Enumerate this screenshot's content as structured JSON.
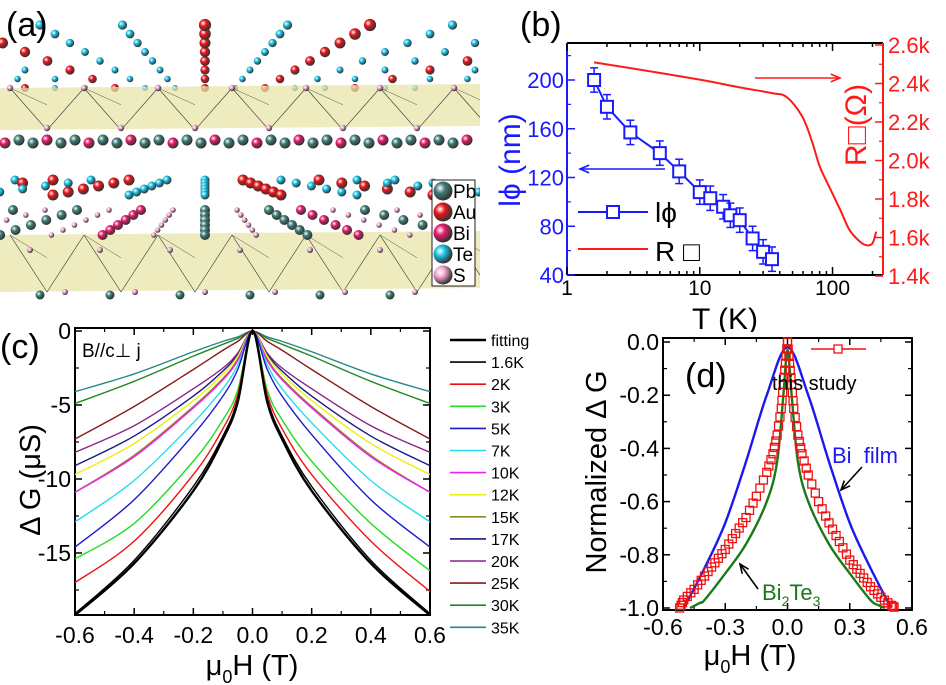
{
  "panel_a": {
    "label": "(a)",
    "legend": [
      {
        "name": "Pb",
        "color": "#3f7d78"
      },
      {
        "name": "Au",
        "color": "#e8141a"
      },
      {
        "name": "Bi",
        "color": "#e6196a"
      },
      {
        "name": "Te",
        "color": "#17c3e6"
      },
      {
        "name": "S",
        "color": "#f4a6cf"
      }
    ],
    "layer_color": "#e8e4a8"
  },
  "chart_data": [
    {
      "id": "b",
      "label": "(b)",
      "type": "line",
      "xlabel": "T (K)",
      "xscale": "log",
      "xlim": [
        1,
        240
      ],
      "xticks": [
        "1",
        "10",
        "100"
      ],
      "xtick_values": [
        1,
        10,
        100
      ],
      "ylabel_left": "lϕ (nm)",
      "ylim_left": [
        40,
        230
      ],
      "yticks_left": [
        40,
        80,
        120,
        160,
        200
      ],
      "ylabel_right": "R□(Ω)",
      "ylim_right": [
        1.4,
        2.6
      ],
      "yticks_right": [
        "1.4k",
        "1.6k",
        "1.8k",
        "2.0k",
        "2.2k",
        "2.4k",
        "2.6k"
      ],
      "ytick_right_values": [
        1.4,
        1.6,
        1.8,
        2.0,
        2.2,
        2.4,
        2.6
      ],
      "left_color": "#1a1aff",
      "right_color": "#ff1a1a",
      "legend_placement": "lower-left",
      "series": [
        {
          "name": "lϕ",
          "axis": "left",
          "marker": "open-square",
          "color": "#1a1aff",
          "x": [
            1.6,
            2,
            3,
            5,
            7,
            10,
            12,
            15,
            17,
            20,
            25,
            30,
            35
          ],
          "y": [
            200,
            178,
            157,
            140,
            125,
            108,
            103,
            96,
            89,
            85,
            70,
            59,
            53
          ],
          "err": [
            10,
            10,
            10,
            10,
            10,
            10,
            10,
            10,
            10,
            10,
            10,
            10,
            10
          ]
        },
        {
          "name": "R □",
          "axis": "right",
          "marker": "none",
          "color": "#ff1a1a",
          "x": [
            1.6,
            3,
            10,
            20,
            35,
            45,
            59,
            70,
            80,
            95,
            115,
            134,
            160,
            180,
            200,
            213
          ],
          "y": [
            2.51,
            2.48,
            2.42,
            2.38,
            2.35,
            2.33,
            2.23,
            2.1,
            1.97,
            1.86,
            1.74,
            1.64,
            1.58,
            1.56,
            1.57,
            1.63
          ]
        }
      ]
    },
    {
      "id": "c",
      "label": "(c)",
      "type": "line",
      "annotation": "B//c⊥ j",
      "xlabel": "μ0H (T)",
      "ylabel": "Δ G (μS)",
      "xlim": [
        -0.6,
        0.6
      ],
      "ylim": [
        -19.3,
        0.2
      ],
      "xticks": [
        -0.6,
        -0.4,
        -0.2,
        0.0,
        0.2,
        0.4,
        0.6
      ],
      "xtick_labels": [
        "-0.6",
        "-0.4",
        "-0.2",
        "0.0",
        "0.2",
        "0.4",
        "0.6"
      ],
      "yticks": [
        0,
        -5,
        -10,
        -15
      ],
      "ytick_labels": [
        "0",
        "-5",
        "-10",
        "-15"
      ],
      "legend_placement": "right-outside",
      "x": [
        -0.6,
        -0.4,
        -0.2,
        -0.1,
        -0.05,
        0,
        0.05,
        0.1,
        0.2,
        0.4,
        0.6
      ],
      "series": [
        {
          "name": "fitting",
          "color": "#000000",
          "y": [
            -19.2,
            -15.7,
            -10.8,
            -7.3,
            -4.8,
            0,
            -4.8,
            -7.3,
            -10.8,
            -15.7,
            -19.2
          ]
        },
        {
          "name": "1.6K",
          "color": "#000000",
          "y": [
            -19.1,
            -15.5,
            -10.5,
            -7.1,
            -4.6,
            0,
            -4.6,
            -7.1,
            -10.5,
            -15.5,
            -19.1
          ]
        },
        {
          "name": "2K",
          "color": "#ee1111",
          "y": [
            -17.0,
            -14.2,
            -9.7,
            -6.6,
            -4.3,
            0,
            -4.3,
            -6.6,
            -9.7,
            -14.2,
            -17.6
          ]
        },
        {
          "name": "3K",
          "color": "#22dd22",
          "y": [
            -15.4,
            -13.0,
            -8.8,
            -6.0,
            -4.0,
            0,
            -4.0,
            -6.0,
            -8.8,
            -13.0,
            -16.2
          ]
        },
        {
          "name": "5K",
          "color": "#1a1acc",
          "y": [
            -14.6,
            -11.4,
            -7.0,
            -4.4,
            -2.6,
            0,
            -2.6,
            -4.4,
            -7.0,
            -11.4,
            -14.6
          ]
        },
        {
          "name": "7K",
          "color": "#22ddee",
          "y": [
            -12.9,
            -10.1,
            -6.2,
            -3.9,
            -2.3,
            0,
            -2.3,
            -3.9,
            -6.2,
            -10.1,
            -12.9
          ]
        },
        {
          "name": "10K",
          "color": "#ee22ee",
          "y": [
            -10.9,
            -8.5,
            -5.2,
            -3.3,
            -2.0,
            0,
            -2.0,
            -3.3,
            -5.2,
            -8.5,
            -10.9
          ]
        },
        {
          "name": "12K",
          "color": "#eeee11",
          "y": [
            -9.7,
            -7.6,
            -4.7,
            -2.9,
            -1.7,
            0,
            -1.7,
            -2.9,
            -4.7,
            -7.6,
            -9.7
          ]
        },
        {
          "name": "15K",
          "color": "#8a8a22",
          "y": [
            -10.9,
            -8.4,
            -5.1,
            -3.2,
            -1.9,
            0,
            -1.9,
            -3.2,
            -5.1,
            -8.4,
            -10.9
          ]
        },
        {
          "name": "17K",
          "color": "#1a1a88",
          "y": [
            -9.1,
            -7.1,
            -4.4,
            -2.7,
            -1.6,
            0,
            -1.6,
            -2.7,
            -4.4,
            -7.1,
            -9.1
          ]
        },
        {
          "name": "20K",
          "color": "#882288",
          "y": [
            -8.2,
            -6.4,
            -3.9,
            -2.5,
            -1.5,
            0,
            -1.5,
            -2.5,
            -3.9,
            -6.4,
            -8.2
          ]
        },
        {
          "name": "25K",
          "color": "#881a1a",
          "y": [
            -7.3,
            -5.1,
            -2.6,
            -1.3,
            -0.7,
            0,
            -0.7,
            -1.3,
            -2.6,
            -5.1,
            -7.3
          ]
        },
        {
          "name": "30K",
          "color": "#228822",
          "y": [
            -4.9,
            -3.4,
            -1.7,
            -0.9,
            -0.5,
            0,
            -0.5,
            -0.9,
            -1.7,
            -3.4,
            -4.9
          ]
        },
        {
          "name": "35K",
          "color": "#228888",
          "y": [
            -4.1,
            -2.9,
            -1.4,
            -0.7,
            -0.4,
            0,
            -0.4,
            -0.7,
            -1.4,
            -2.9,
            -4.1
          ]
        }
      ]
    },
    {
      "id": "d",
      "label": "(d)",
      "type": "line",
      "xlabel": "μ0H (T)",
      "ylabel": "Normalized Δ G",
      "xlim": [
        -0.6,
        0.6
      ],
      "ylim": [
        -1.01,
        0.015
      ],
      "xticks": [
        -0.6,
        -0.3,
        0.0,
        0.3,
        0.6
      ],
      "xtick_labels": [
        "-0.6",
        "-0.3",
        "0.0",
        "0.3",
        "0.6"
      ],
      "yticks": [
        0,
        -0.2,
        -0.4,
        -0.6,
        -0.8,
        -1.0
      ],
      "ytick_labels": [
        "0.0",
        "-0.2",
        "-0.4",
        "-0.6",
        "-0.8",
        "-1.0"
      ],
      "legend_placement": "top-right",
      "series": [
        {
          "name": "this study",
          "color": "#ee1111",
          "marker": "open-square",
          "x": [
            -0.52,
            -0.5,
            -0.45,
            -0.4,
            -0.35,
            -0.3,
            -0.25,
            -0.2,
            -0.15,
            -0.1,
            -0.07,
            -0.05,
            -0.03,
            -0.02,
            -0.01,
            0,
            0.01,
            0.02,
            0.03,
            0.05,
            0.07,
            0.1,
            0.15,
            0.2,
            0.25,
            0.3,
            0.35,
            0.4,
            0.45,
            0.5,
            0.52
          ],
          "y": [
            -1.0,
            -0.97,
            -0.93,
            -0.88,
            -0.83,
            -0.78,
            -0.72,
            -0.66,
            -0.58,
            -0.49,
            -0.42,
            -0.35,
            -0.25,
            -0.16,
            -0.08,
            0,
            -0.08,
            -0.16,
            -0.25,
            -0.35,
            -0.42,
            -0.5,
            -0.6,
            -0.68,
            -0.75,
            -0.82,
            -0.87,
            -0.92,
            -0.96,
            -0.99,
            -1.0
          ]
        },
        {
          "name": "Bi  film",
          "color": "#1a1aee",
          "x": [
            -0.5,
            -0.4,
            -0.3,
            -0.2,
            -0.1,
            0,
            0.1,
            0.2,
            0.3,
            0.4,
            0.5
          ],
          "y": [
            -1.0,
            -0.85,
            -0.68,
            -0.45,
            -0.2,
            -0.02,
            -0.2,
            -0.45,
            -0.68,
            -0.85,
            -1.0
          ]
        },
        {
          "name": "Bi2Te3",
          "name_main": "Bi",
          "sub1": "2",
          "mid": "Te",
          "sub2": "3",
          "color": "#1a7a1a",
          "x": [
            -0.47,
            -0.42,
            -0.4,
            -0.3,
            -0.2,
            -0.1,
            -0.05,
            -0.02,
            0,
            0.02,
            0.05,
            0.1,
            0.2,
            0.3,
            0.4,
            0.44,
            0.47
          ],
          "y": [
            -1.0,
            -0.98,
            -0.97,
            -0.87,
            -0.76,
            -0.6,
            -0.45,
            -0.2,
            -0.03,
            -0.2,
            -0.45,
            -0.6,
            -0.76,
            -0.87,
            -0.97,
            -0.99,
            -1.0
          ]
        }
      ]
    }
  ]
}
